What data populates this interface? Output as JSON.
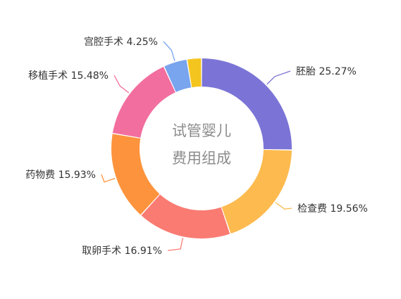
{
  "chart_data": {
    "type": "pie",
    "donut": true,
    "center_title_line1": "试管婴儿",
    "center_title_line2": "费用组成",
    "slices": [
      {
        "name": "胚胎",
        "label": "胚胎 25.27%",
        "value": 25.27,
        "color": "#7B74D6"
      },
      {
        "name": "检查费",
        "label": "检查费 19.56%",
        "value": 19.56,
        "color": "#FDBA4E"
      },
      {
        "name": "取卵手术",
        "label": "取卵手术 16.91%",
        "value": 16.91,
        "color": "#F97B72"
      },
      {
        "name": "药物费",
        "label": "药物费 15.93%",
        "value": 15.93,
        "color": "#FD933C"
      },
      {
        "name": "移植手术",
        "label": "移植手术 15.48%",
        "value": 15.48,
        "color": "#F26E9E"
      },
      {
        "name": "宫腔手术",
        "label": "宫腔手术 4.25%",
        "value": 4.25,
        "color": "#79A4EE"
      },
      {
        "name": "",
        "label": "",
        "value": 2.6,
        "color": "#F5C51F"
      }
    ]
  }
}
